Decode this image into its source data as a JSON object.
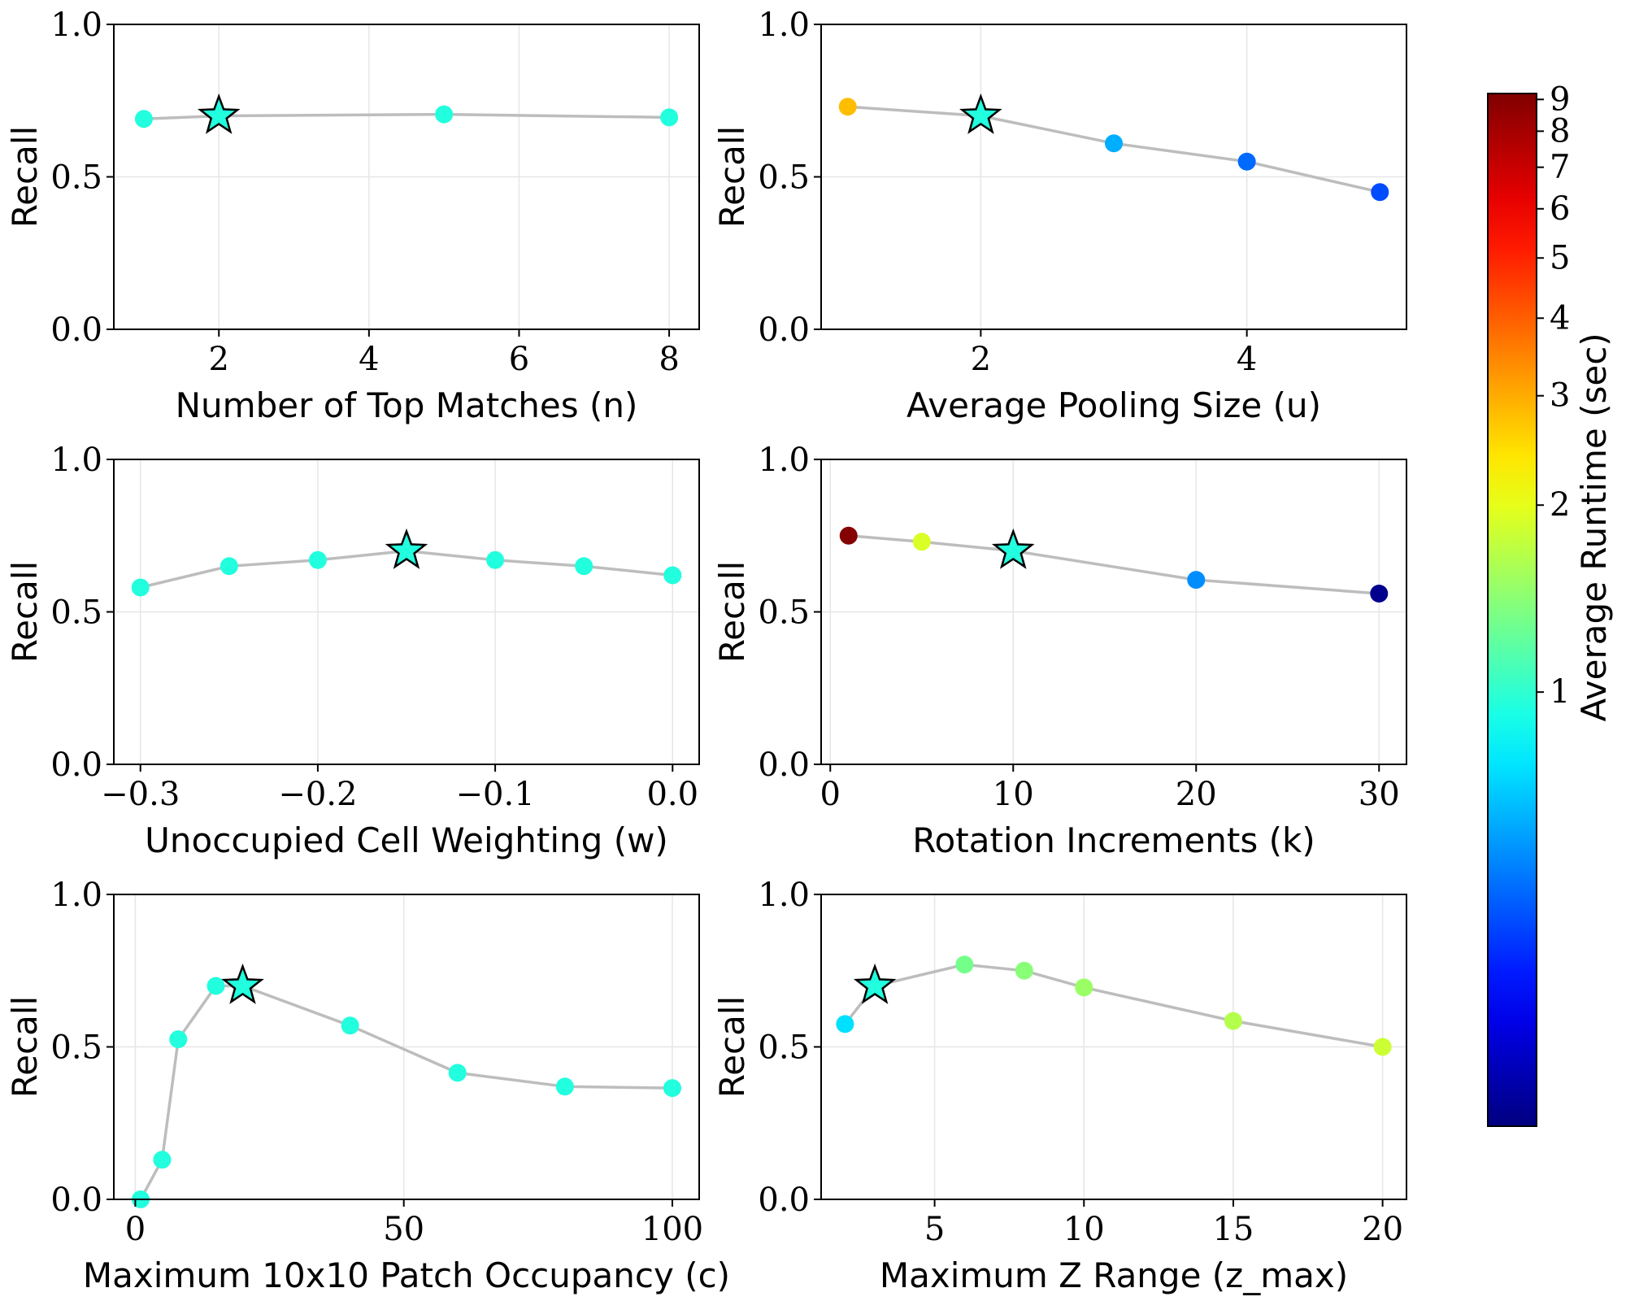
{
  "colorbar": {
    "label": "Average Runtime (sec)",
    "scale": "log",
    "range": [
      0.2,
      9.2
    ],
    "ticks": [
      {
        "v": 1,
        "label": "1"
      },
      {
        "v": 2,
        "label": "2"
      },
      {
        "v": 3,
        "label": "3"
      },
      {
        "v": 4,
        "label": "4"
      },
      {
        "v": 5,
        "label": "5"
      },
      {
        "v": 6,
        "label": "6"
      },
      {
        "v": 7,
        "label": "7"
      },
      {
        "v": 8,
        "label": "8"
      },
      {
        "v": 9,
        "label": "9"
      }
    ],
    "colormap": "jet"
  },
  "chart_data": [
    {
      "type": "scatter",
      "xlabel": "Number of Top Matches (n)",
      "ylabel": "Recall",
      "xlim": [
        0.6,
        8.4
      ],
      "ylim": [
        0,
        1
      ],
      "xticks": [
        {
          "v": 2,
          "label": "2"
        },
        {
          "v": 4,
          "label": "4"
        },
        {
          "v": 6,
          "label": "6"
        },
        {
          "v": 8,
          "label": "8"
        }
      ],
      "yticks": [
        {
          "v": 0,
          "label": "0.0"
        },
        {
          "v": 0.5,
          "label": "0.5"
        },
        {
          "v": 1,
          "label": "1.0"
        }
      ],
      "grid": true,
      "points": [
        {
          "x": 1,
          "y": 0.69,
          "runtime": 0.95
        },
        {
          "x": 2,
          "y": 0.7,
          "runtime": 0.95,
          "star": true
        },
        {
          "x": 5,
          "y": 0.705,
          "runtime": 0.95
        },
        {
          "x": 8,
          "y": 0.695,
          "runtime": 0.95
        }
      ]
    },
    {
      "type": "scatter",
      "xlabel": "Average Pooling Size (u)",
      "ylabel": "Recall",
      "xlim": [
        0.8,
        5.2
      ],
      "ylim": [
        0,
        1
      ],
      "xticks": [
        {
          "v": 2,
          "label": "2"
        },
        {
          "v": 4,
          "label": "4"
        }
      ],
      "yticks": [
        {
          "v": 0,
          "label": "0.0"
        },
        {
          "v": 0.5,
          "label": "0.5"
        },
        {
          "v": 1,
          "label": "1.0"
        }
      ],
      "grid": true,
      "points": [
        {
          "x": 1,
          "y": 0.73,
          "runtime": 2.8
        },
        {
          "x": 2,
          "y": 0.7,
          "runtime": 0.95,
          "star": true
        },
        {
          "x": 3,
          "y": 0.61,
          "runtime": 0.62
        },
        {
          "x": 4,
          "y": 0.55,
          "runtime": 0.48
        },
        {
          "x": 5,
          "y": 0.45,
          "runtime": 0.43
        }
      ]
    },
    {
      "type": "scatter",
      "xlabel": "Unoccupied Cell Weighting (w)",
      "ylabel": "Recall",
      "xlim": [
        -0.315,
        0.015
      ],
      "ylim": [
        0,
        1
      ],
      "xticks": [
        {
          "v": -0.3,
          "label": "−0.3"
        },
        {
          "v": -0.2,
          "label": "−0.2"
        },
        {
          "v": -0.1,
          "label": "−0.1"
        },
        {
          "v": 0,
          "label": "0.0"
        }
      ],
      "yticks": [
        {
          "v": 0,
          "label": "0.0"
        },
        {
          "v": 0.5,
          "label": "0.5"
        },
        {
          "v": 1,
          "label": "1.0"
        }
      ],
      "grid": true,
      "points": [
        {
          "x": -0.3,
          "y": 0.58,
          "runtime": 0.95
        },
        {
          "x": -0.25,
          "y": 0.65,
          "runtime": 0.95
        },
        {
          "x": -0.2,
          "y": 0.67,
          "runtime": 0.95
        },
        {
          "x": -0.15,
          "y": 0.7,
          "runtime": 0.95,
          "star": true
        },
        {
          "x": -0.1,
          "y": 0.67,
          "runtime": 0.95
        },
        {
          "x": -0.05,
          "y": 0.65,
          "runtime": 0.95
        },
        {
          "x": 0,
          "y": 0.62,
          "runtime": 0.95
        }
      ]
    },
    {
      "type": "scatter",
      "xlabel": "Rotation Increments (k)",
      "ylabel": "Recall",
      "xlim": [
        -0.5,
        31.5
      ],
      "ylim": [
        0,
        1
      ],
      "xticks": [
        {
          "v": 0,
          "label": "0"
        },
        {
          "v": 10,
          "label": "10"
        },
        {
          "v": 20,
          "label": "20"
        },
        {
          "v": 30,
          "label": "30"
        }
      ],
      "yticks": [
        {
          "v": 0,
          "label": "0.0"
        },
        {
          "v": 0.5,
          "label": "0.5"
        },
        {
          "v": 1,
          "label": "1.0"
        }
      ],
      "grid": true,
      "points": [
        {
          "x": 1,
          "y": 0.75,
          "runtime": 9.0
        },
        {
          "x": 5,
          "y": 0.73,
          "runtime": 1.9
        },
        {
          "x": 10,
          "y": 0.7,
          "runtime": 0.95,
          "star": true
        },
        {
          "x": 20,
          "y": 0.605,
          "runtime": 0.55
        },
        {
          "x": 30,
          "y": 0.56,
          "runtime": 0.21
        }
      ]
    },
    {
      "type": "scatter",
      "xlabel": "Maximum 10x10 Patch Occupancy (c)",
      "ylabel": "Recall",
      "xlim": [
        -4,
        105
      ],
      "ylim": [
        0,
        1
      ],
      "xticks": [
        {
          "v": 0,
          "label": "0"
        },
        {
          "v": 50,
          "label": "50"
        },
        {
          "v": 100,
          "label": "100"
        }
      ],
      "yticks": [
        {
          "v": 0,
          "label": "0.0"
        },
        {
          "v": 0.5,
          "label": "0.5"
        },
        {
          "v": 1,
          "label": "1.0"
        }
      ],
      "grid": true,
      "points": [
        {
          "x": 1,
          "y": 0.0,
          "runtime": 0.95
        },
        {
          "x": 5,
          "y": 0.13,
          "runtime": 0.95
        },
        {
          "x": 8,
          "y": 0.525,
          "runtime": 0.95
        },
        {
          "x": 15,
          "y": 0.7,
          "runtime": 0.95
        },
        {
          "x": 20,
          "y": 0.7,
          "runtime": 0.95,
          "star": true
        },
        {
          "x": 40,
          "y": 0.57,
          "runtime": 0.95
        },
        {
          "x": 60,
          "y": 0.415,
          "runtime": 0.95
        },
        {
          "x": 80,
          "y": 0.37,
          "runtime": 0.95
        },
        {
          "x": 100,
          "y": 0.365,
          "runtime": 0.95
        }
      ]
    },
    {
      "type": "scatter",
      "xlabel": "Maximum Z Range (z_max)",
      "ylabel": "Recall",
      "xlim": [
        1.2,
        20.8
      ],
      "ylim": [
        0,
        1
      ],
      "xticks": [
        {
          "v": 5,
          "label": "5"
        },
        {
          "v": 10,
          "label": "10"
        },
        {
          "v": 15,
          "label": "15"
        },
        {
          "v": 20,
          "label": "20"
        }
      ],
      "yticks": [
        {
          "v": 0,
          "label": "0.0"
        },
        {
          "v": 0.5,
          "label": "0.5"
        },
        {
          "v": 1,
          "label": "1.0"
        }
      ],
      "grid": true,
      "points": [
        {
          "x": 2,
          "y": 0.575,
          "runtime": 0.75
        },
        {
          "x": 3,
          "y": 0.7,
          "runtime": 0.95,
          "star": true
        },
        {
          "x": 6,
          "y": 0.77,
          "runtime": 1.3
        },
        {
          "x": 8,
          "y": 0.75,
          "runtime": 1.4
        },
        {
          "x": 10,
          "y": 0.695,
          "runtime": 1.5
        },
        {
          "x": 15,
          "y": 0.585,
          "runtime": 1.65
        },
        {
          "x": 20,
          "y": 0.5,
          "runtime": 1.8
        }
      ]
    }
  ]
}
